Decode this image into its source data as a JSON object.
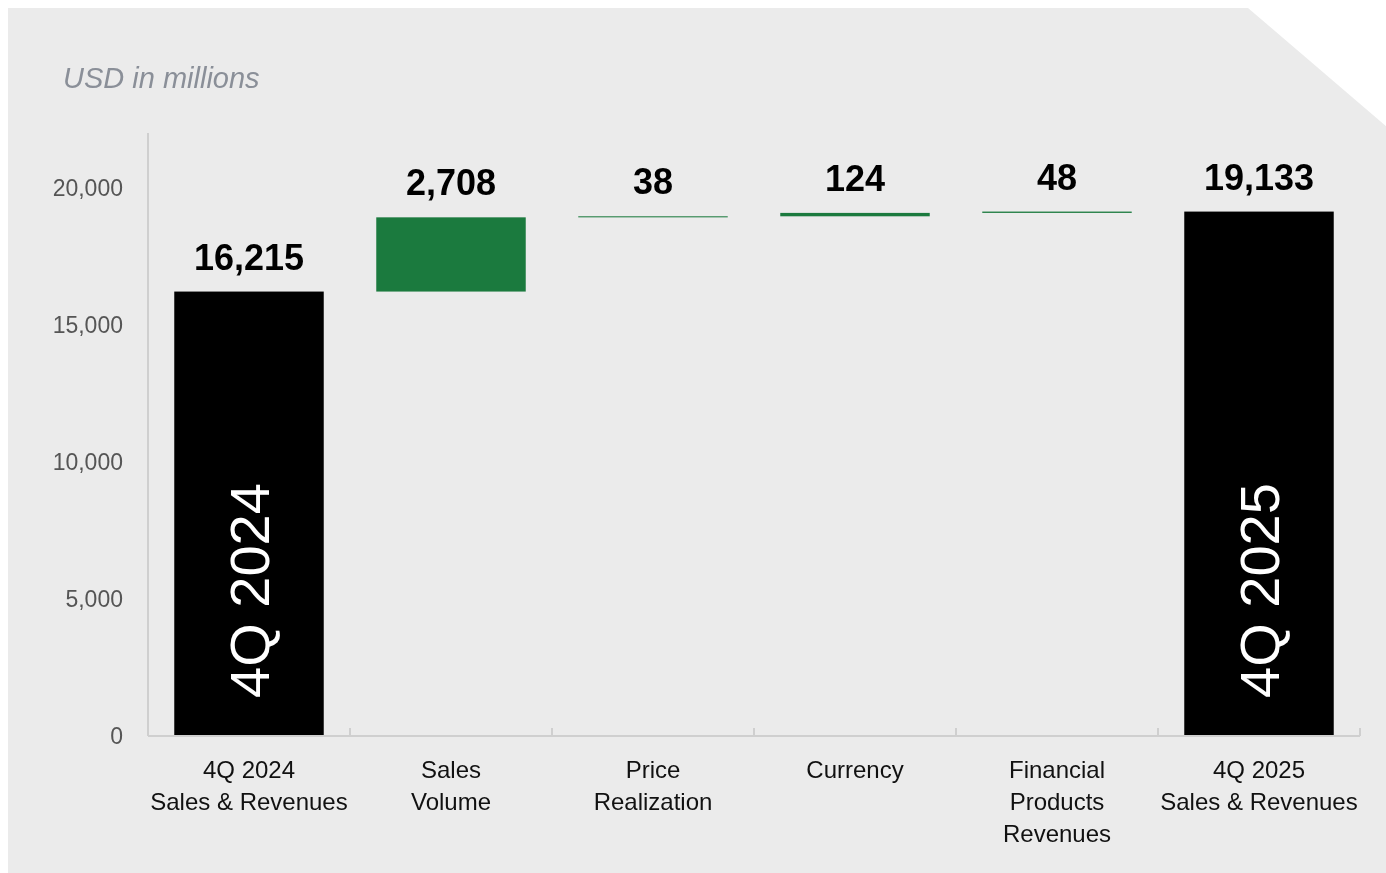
{
  "chart_data": {
    "type": "bar",
    "subtitle": "USD in millions",
    "categories": [
      "4Q 2024\nSales & Revenues",
      "Sales\nVolume",
      "Price\nRealization",
      "Currency",
      "Financial\nProducts\nRevenues",
      "4Q 2025\nSales & Revenues"
    ],
    "values": [
      16215,
      2708,
      38,
      124,
      48,
      19133
    ],
    "base": [
      0,
      16215,
      18923,
      18961,
      19085,
      0
    ],
    "colors": [
      "#000000",
      "#1b7a3e",
      "#1b7a3e",
      "#1b7a3e",
      "#1b7a3e",
      "#000000"
    ],
    "value_labels": [
      "16,215",
      "2,708",
      "38",
      "124",
      "48",
      "19,133"
    ],
    "ylim": [
      0,
      22000
    ],
    "yticks": [
      0,
      {
        "value": 5000,
        "label": "5,000"
      },
      {
        "value": 10000,
        "label": "10,000"
      },
      {
        "value": 15000,
        "label": "15,000"
      },
      {
        "value": 20000,
        "label": "20,000"
      }
    ],
    "grid": false,
    "annotations": [
      "4Q 2024",
      "4Q 2025"
    ]
  }
}
